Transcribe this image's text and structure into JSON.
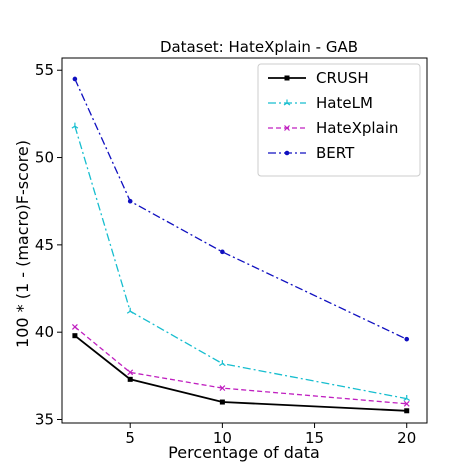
{
  "chart_data": {
    "type": "line",
    "title": "Dataset: HateXplain - GAB",
    "xlabel": "Percentage of data",
    "ylabel": "100 * (1 - (macro)F-score)",
    "x": [
      2,
      5,
      10,
      20
    ],
    "xlim": [
      1.3,
      21.1
    ],
    "ylim": [
      34.8,
      55.7
    ],
    "xticks": [
      5,
      10,
      15,
      20
    ],
    "yticks": [
      35,
      40,
      45,
      50,
      55
    ],
    "grid": false,
    "legend_position": "top-right",
    "series": [
      {
        "name": "CRUSH",
        "values": [
          39.8,
          37.3,
          36.0,
          35.5
        ],
        "color": "#000000",
        "dash": "solid",
        "marker": "square"
      },
      {
        "name": "HateLM",
        "values": [
          51.8,
          41.2,
          38.2,
          36.2
        ],
        "color": "#17becf",
        "dash": "dashdot",
        "marker": "tri"
      },
      {
        "name": "HateXplain",
        "values": [
          40.3,
          37.7,
          36.8,
          35.9
        ],
        "color": "#c020c0",
        "dash": "dashed",
        "marker": "x"
      },
      {
        "name": "BERT",
        "values": [
          54.5,
          47.5,
          44.6,
          39.6
        ],
        "color": "#1010c0",
        "dash": "dashdot",
        "marker": "dot"
      }
    ]
  }
}
